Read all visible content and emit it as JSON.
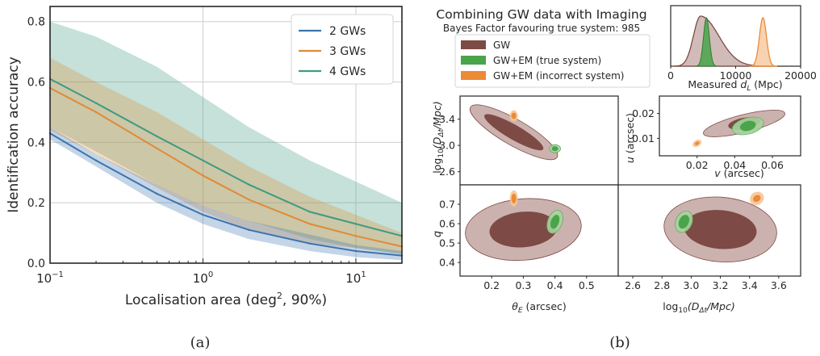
{
  "captions": {
    "a": "(a)",
    "b": "(b)"
  },
  "colors": {
    "blue": "#3b74ae",
    "orange": "#de8b36",
    "green": "#3f9a82",
    "gw": "#7e4a45",
    "gw_light": "#c6aaa6",
    "em": "#4aa44a",
    "em_light": "#a7d39e",
    "inc": "#ec8a36",
    "inc_light": "#f6c497"
  },
  "chart_data": [
    {
      "type": "line",
      "xscale": "log",
      "xlim": [
        0.1,
        20
      ],
      "ylim": [
        0.0,
        0.85
      ],
      "xticks": [
        {
          "v": 0.1,
          "label": "10",
          "sup": "−1"
        },
        {
          "v": 1,
          "label": "10",
          "sup": "0"
        },
        {
          "v": 10,
          "label": "10",
          "sup": "1"
        }
      ],
      "yticks": [
        0.0,
        0.2,
        0.4,
        0.6,
        0.8
      ],
      "ylabel": "Identification accuracy",
      "xlabel": {
        "main": "Localisation area (deg",
        "sup": "2",
        "end": ", 90%)"
      },
      "grid": true,
      "legend_position": "top-right",
      "x": [
        0.1,
        0.2,
        0.5,
        1,
        2,
        5,
        10,
        20
      ],
      "series": [
        {
          "name": "2 GWs",
          "color": "#3b74ae",
          "values": [
            0.43,
            0.34,
            0.23,
            0.16,
            0.11,
            0.065,
            0.04,
            0.025
          ],
          "lower": [
            0.41,
            0.32,
            0.2,
            0.13,
            0.08,
            0.04,
            0.02,
            0.01
          ],
          "upper": [
            0.45,
            0.36,
            0.26,
            0.19,
            0.14,
            0.095,
            0.06,
            0.04
          ]
        },
        {
          "name": "3 GWs",
          "color": "#de8b36",
          "values": [
            0.58,
            0.5,
            0.38,
            0.29,
            0.21,
            0.13,
            0.09,
            0.055
          ],
          "lower": [
            0.44,
            0.36,
            0.25,
            0.17,
            0.11,
            0.065,
            0.05,
            0.03
          ],
          "upper": [
            0.68,
            0.6,
            0.5,
            0.41,
            0.32,
            0.22,
            0.16,
            0.1
          ]
        },
        {
          "name": "4 GWs",
          "color": "#3f9a82",
          "values": [
            0.61,
            0.53,
            0.42,
            0.34,
            0.26,
            0.17,
            0.13,
            0.09
          ],
          "lower": [
            0.45,
            0.37,
            0.26,
            0.19,
            0.14,
            0.08,
            0.05,
            0.03
          ],
          "upper": [
            0.8,
            0.75,
            0.65,
            0.55,
            0.45,
            0.34,
            0.27,
            0.2
          ]
        }
      ]
    },
    {
      "type": "corner",
      "title": "Combining GW data with Imaging",
      "subtitle": "Bayes Factor favouring true system: 985",
      "legend": [
        {
          "name": "GW",
          "color": "#7e4a45"
        },
        {
          "name": "GW+EM (true system)",
          "color": "#4aa44a"
        },
        {
          "name": "GW+EM (incorrect system)",
          "color": "#ec8a36"
        }
      ],
      "histogram": {
        "xlabel": {
          "main": "Measured ",
          "var": "d",
          "sub": "L",
          "end": " (Mpc)"
        },
        "xlim": [
          0,
          20000
        ],
        "xticks": [
          0,
          10000,
          20000
        ],
        "peaks": [
          {
            "name": "GW",
            "mode": 4600,
            "color": "#7e4a45"
          },
          {
            "name": "GW+EM (true system)",
            "mode": 5500,
            "color": "#4aa44a"
          },
          {
            "name": "GW+EM (incorrect system)",
            "mode": 14200,
            "color": "#ec8a36"
          }
        ]
      },
      "panels": [
        {
          "id": "theta_vs_logD",
          "xlim": [
            0.1,
            0.6
          ],
          "ylim": [
            2.4,
            3.75
          ],
          "yticks": [
            2.6,
            3.0,
            3.4
          ],
          "ylabel": {
            "main": "log",
            "sub": "10",
            "end": "(D",
            "sub2": "Δt",
            "end2": "/Mpc)"
          },
          "gw_center": [
            0.27,
            3.2
          ],
          "true_center": [
            0.4,
            2.95
          ],
          "incorrect_center": [
            0.27,
            3.45
          ]
        },
        {
          "id": "v_vs_u",
          "xlim": [
            0.0,
            0.075
          ],
          "ylim": [
            0.003,
            0.027
          ],
          "xticks": [
            0.02,
            0.04,
            0.06
          ],
          "yticks": [
            0.01,
            0.02
          ],
          "xlabel": {
            "var": "v",
            "end": " (arcsec)"
          },
          "ylabel": {
            "var": "u",
            "end": " (arcsec)"
          },
          "gw_center": [
            0.045,
            0.016
          ],
          "true_center": [
            0.047,
            0.015
          ],
          "incorrect_center": [
            0.02,
            0.008
          ]
        },
        {
          "id": "theta_vs_q",
          "xlim": [
            0.1,
            0.6
          ],
          "ylim": [
            0.33,
            0.8
          ],
          "xticks": [
            0.2,
            0.3,
            0.4,
            0.5
          ],
          "yticks": [
            0.4,
            0.5,
            0.6,
            0.7
          ],
          "xlabel": {
            "var": "θ",
            "sub": "E",
            "end": " (arcsec)"
          },
          "ylabel": {
            "var": "q"
          },
          "gw_center": [
            0.3,
            0.57
          ],
          "true_center": [
            0.4,
            0.61
          ],
          "incorrect_center": [
            0.27,
            0.73
          ]
        },
        {
          "id": "logD_vs_q",
          "xlim": [
            2.5,
            3.75
          ],
          "ylim": [
            0.33,
            0.8
          ],
          "xticks": [
            2.6,
            2.8,
            3.0,
            3.2,
            3.4,
            3.6
          ],
          "xlabel": {
            "main": "log",
            "sub": "10",
            "end": "(D",
            "sub2": "Δt",
            "end2": "/Mpc)"
          },
          "gw_center": [
            3.2,
            0.57
          ],
          "true_center": [
            2.95,
            0.61
          ],
          "incorrect_center": [
            3.45,
            0.73
          ]
        }
      ]
    }
  ]
}
